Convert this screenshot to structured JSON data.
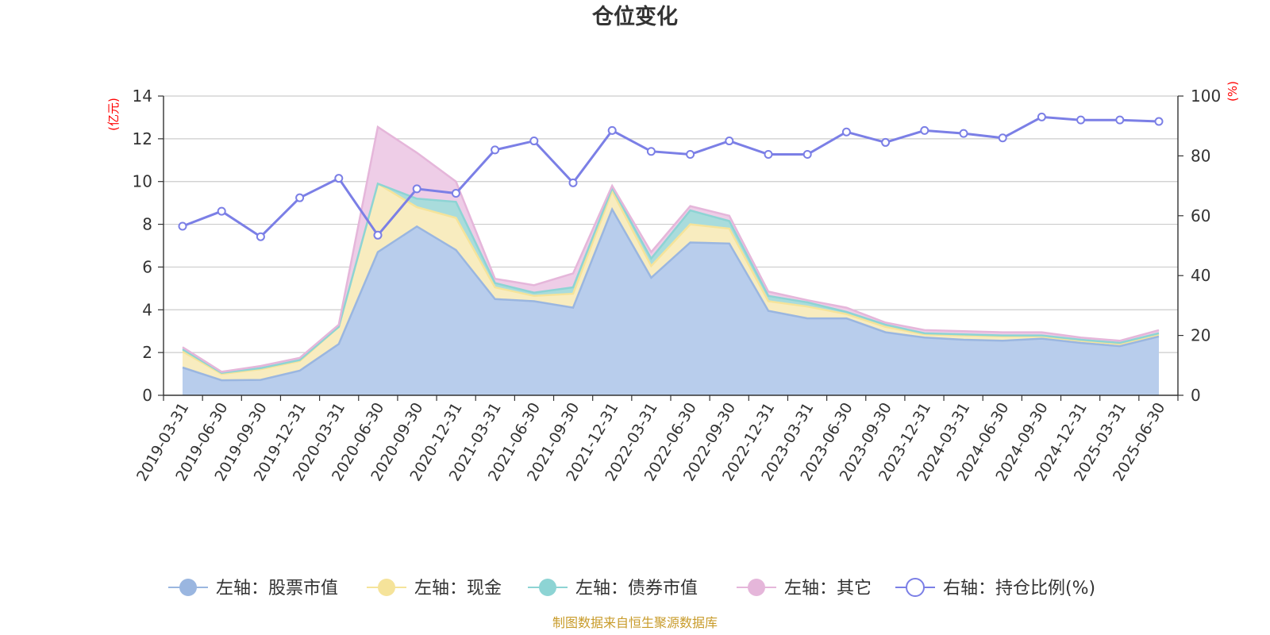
{
  "title": "仓位变化",
  "source": "制图数据来自恒生聚源数据库",
  "colors": {
    "stock": "#9ab6e0",
    "stock_fill": "#b8cdec",
    "cash": "#f5e39a",
    "cash_fill": "#f8ecbf",
    "bond": "#8dd4d4",
    "bond_fill": "#a9dcdc",
    "other": "#e5b6da",
    "other_fill": "#eecde7",
    "ratio": "#7b7fe6",
    "unit": "#ff0000",
    "source": "#c89b2a"
  },
  "chart_data": {
    "type": "area",
    "title": "仓位变化",
    "left_axis_unit": "(亿元)",
    "right_axis_unit": "(%)",
    "ylim_left": [
      0,
      14
    ],
    "yticks_left": [
      0,
      2,
      4,
      6,
      8,
      10,
      12,
      14
    ],
    "ylim_right": [
      0,
      100
    ],
    "yticks_right": [
      0,
      20,
      40,
      60,
      80,
      100
    ],
    "grid": true,
    "legend_position": "bottom",
    "categories": [
      "2019-03-31",
      "2019-06-30",
      "2019-09-30",
      "2019-12-31",
      "2020-03-31",
      "2020-06-30",
      "2020-09-30",
      "2020-12-31",
      "2021-03-31",
      "2021-06-30",
      "2021-09-30",
      "2021-12-31",
      "2022-03-31",
      "2022-06-30",
      "2022-09-30",
      "2022-12-31",
      "2023-03-31",
      "2023-06-30",
      "2023-09-30",
      "2023-12-31",
      "2024-03-31",
      "2024-06-30",
      "2024-09-30",
      "2024-12-31",
      "2025-03-31",
      "2025-06-30"
    ],
    "series": [
      {
        "name": "左轴：股票市值",
        "axis": "left",
        "stacked": true,
        "values": [
          1.3,
          0.7,
          0.72,
          1.15,
          2.4,
          6.7,
          7.9,
          6.8,
          4.5,
          4.4,
          4.1,
          8.7,
          5.5,
          7.15,
          7.1,
          3.95,
          3.6,
          3.6,
          2.95,
          2.7,
          2.6,
          2.55,
          2.65,
          2.45,
          2.3,
          2.75
        ]
      },
      {
        "name": "左轴：现金",
        "axis": "left",
        "stacked": true,
        "values": [
          0.75,
          0.3,
          0.5,
          0.45,
          0.8,
          3.2,
          0.9,
          1.5,
          0.55,
          0.25,
          0.65,
          0.85,
          0.55,
          0.85,
          0.7,
          0.45,
          0.55,
          0.2,
          0.25,
          0.15,
          0.2,
          0.2,
          0.1,
          0.1,
          0.1,
          0.1
        ]
      },
      {
        "name": "左轴：债券市值",
        "axis": "left",
        "stacked": true,
        "values": [
          0.1,
          0.05,
          0.05,
          0.05,
          0.0,
          0.0,
          0.4,
          0.75,
          0.2,
          0.15,
          0.3,
          0.15,
          0.35,
          0.65,
          0.35,
          0.25,
          0.2,
          0.1,
          0.1,
          0.05,
          0.05,
          0.05,
          0.05,
          0.05,
          0.05,
          0.05
        ]
      },
      {
        "name": "左轴：其它",
        "axis": "left",
        "stacked": true,
        "values": [
          0.1,
          0.05,
          0.1,
          0.1,
          0.1,
          2.65,
          2.15,
          0.95,
          0.2,
          0.35,
          0.65,
          0.1,
          0.3,
          0.2,
          0.25,
          0.2,
          0.1,
          0.2,
          0.1,
          0.15,
          0.15,
          0.15,
          0.15,
          0.1,
          0.1,
          0.15
        ]
      },
      {
        "name": "右轴：持仓比例(%)",
        "axis": "right",
        "type": "line",
        "values": [
          56.5,
          61.5,
          53,
          66,
          72.5,
          53.5,
          69,
          67.5,
          82,
          85,
          71,
          88.5,
          81.5,
          80.5,
          85,
          80.5,
          80.5,
          88,
          84.5,
          88.5,
          87.5,
          86,
          93,
          92,
          92,
          91.5
        ]
      }
    ]
  }
}
